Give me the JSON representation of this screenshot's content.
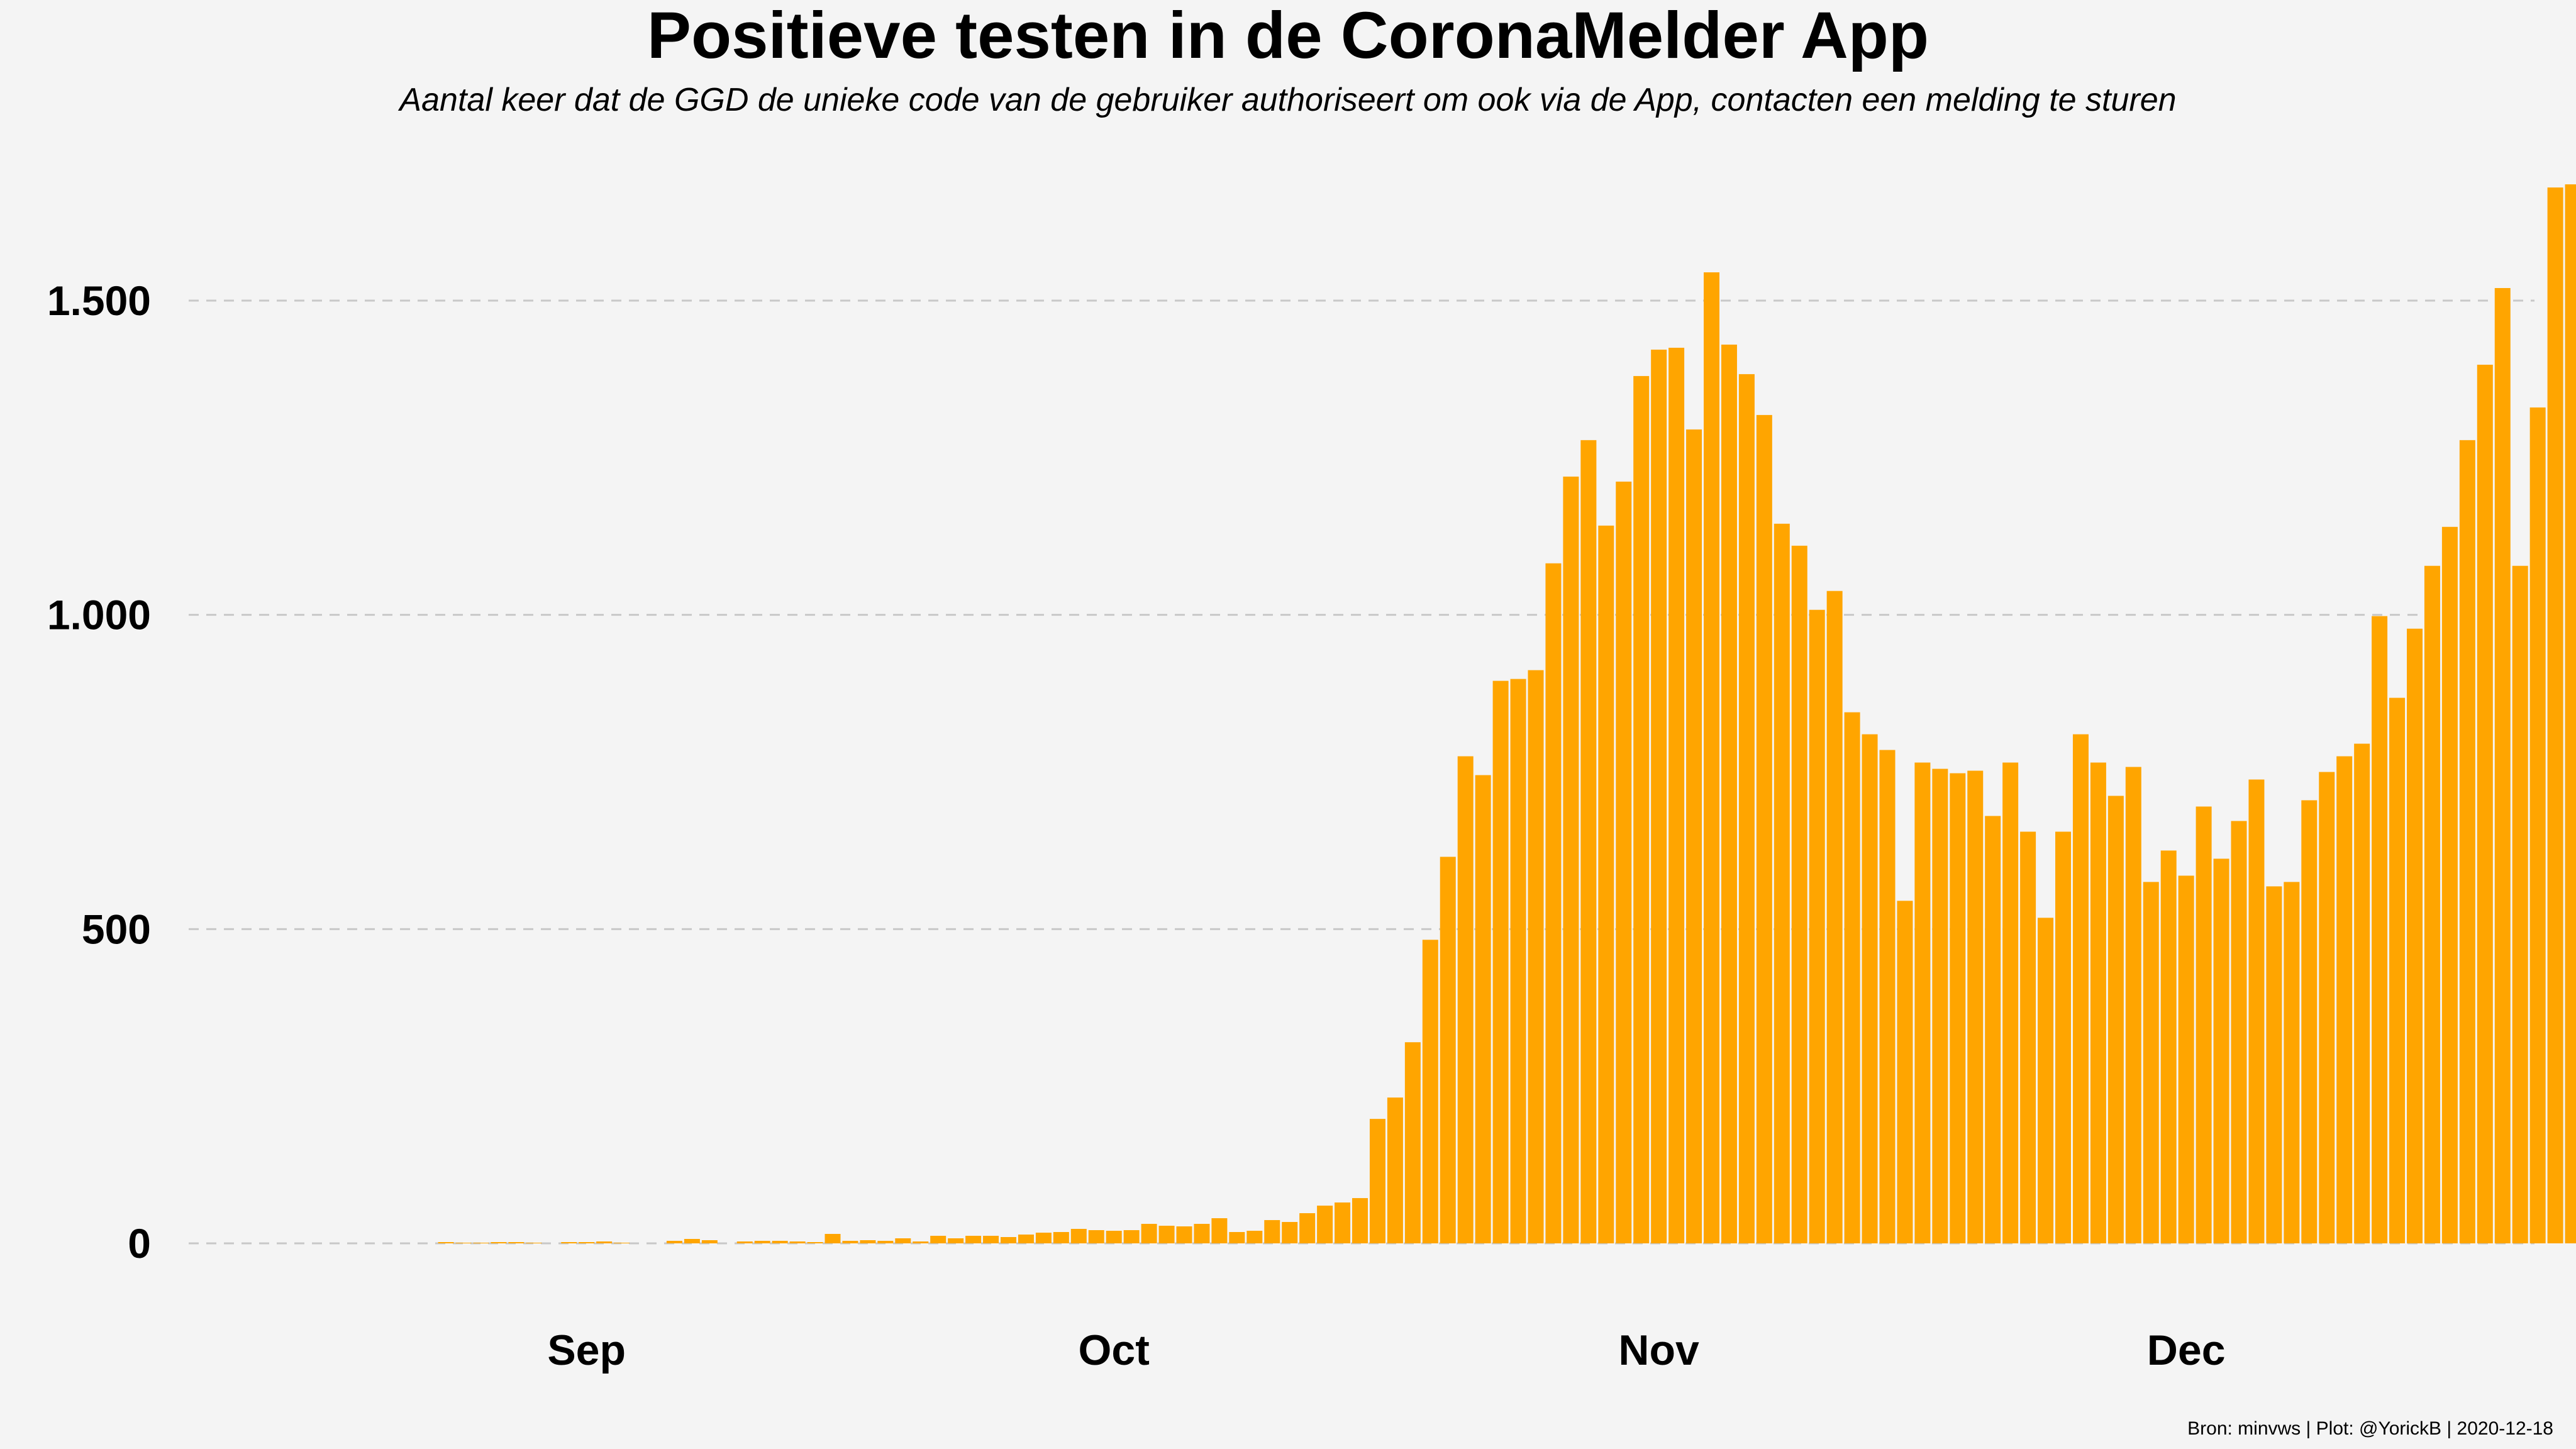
{
  "chart_data": {
    "type": "bar",
    "title": "Positieve testen in de CoronaMelder App",
    "subtitle": "Aantal keer dat de GGD de unieke code van de gebruiker authoriseert om ook via de App, contacten een melding te sturen",
    "xlabel": "",
    "ylabel": "",
    "ylim": [
      0,
      1700
    ],
    "y_ticks": [
      0,
      500,
      1000,
      1500
    ],
    "y_tick_labels": [
      "0",
      "500",
      "1.000",
      "1.500"
    ],
    "x_ticks": [
      {
        "label": "Sep",
        "day_index": 16
      },
      {
        "label": "Oct",
        "day_index": 46
      },
      {
        "label": "Nov",
        "day_index": 77
      },
      {
        "label": "Dec",
        "day_index": 107
      }
    ],
    "bar_color": "#FFA500",
    "grid": true,
    "caption": "Bron: minvws | Plot: @YorickB |  2020-12-18",
    "values": [
      0,
      0,
      0,
      0,
      0,
      0,
      0,
      0,
      2,
      1,
      1,
      2,
      2,
      1,
      0,
      2,
      2,
      3,
      1,
      0,
      0,
      4,
      7,
      5,
      0,
      3,
      4,
      4,
      3,
      2,
      15,
      4,
      5,
      4,
      8,
      3,
      12,
      8,
      12,
      12,
      10,
      14,
      17,
      18,
      23,
      21,
      20,
      21,
      31,
      28,
      27,
      31,
      40,
      18,
      20,
      37,
      34,
      48,
      60,
      65,
      72,
      198,
      232,
      320,
      483,
      615,
      775,
      745,
      895,
      898,
      912,
      1082,
      1220,
      1278,
      1142,
      1212,
      1380,
      1422,
      1425,
      1295,
      1545,
      1430,
      1383,
      1318,
      1145,
      1110,
      1008,
      1038,
      845,
      810,
      785,
      545,
      765,
      755,
      748,
      752,
      680,
      765,
      655,
      518,
      655,
      810,
      765,
      712,
      758,
      575,
      625,
      585,
      695,
      612,
      672,
      738,
      568,
      575,
      705,
      750,
      775,
      795,
      998,
      868,
      978,
      1078,
      1140,
      1278,
      1398,
      1520,
      1078,
      1330,
      1680,
      1685
    ]
  }
}
